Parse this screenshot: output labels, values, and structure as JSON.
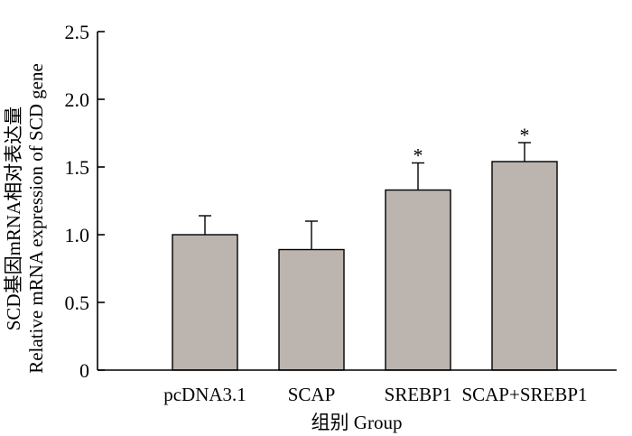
{
  "chart_data": {
    "type": "bar",
    "categories": [
      "pcDNA3.1",
      "SCAP",
      "SREBP1",
      "SCAP+SREBP1"
    ],
    "values": [
      1.0,
      0.89,
      1.33,
      1.54
    ],
    "errors": [
      0.14,
      0.21,
      0.2,
      0.14
    ],
    "significance": [
      "",
      "",
      "*",
      "*"
    ],
    "xlabel": "组别 Group",
    "ylabel_line1": "SCD基因mRNA相对表达量",
    "ylabel_line2": "Relative mRNA expression of SCD gene",
    "ylim": [
      0,
      2.5
    ],
    "yticks": [
      0,
      0.5,
      1.0,
      1.5,
      2.0,
      2.5
    ],
    "ytick_labels": [
      "0",
      "0.5",
      "1.0",
      "1.5",
      "2.0",
      "2.5"
    ],
    "bar_color": "#bbb4af"
  }
}
